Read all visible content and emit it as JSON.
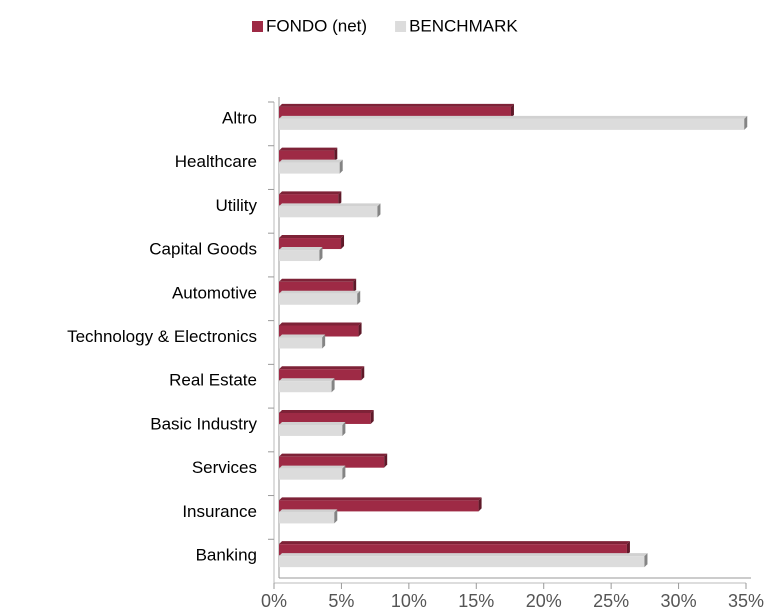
{
  "chart_data": {
    "type": "bar",
    "orientation": "horizontal",
    "categories": [
      "Altro",
      "Healthcare",
      "Utility",
      "Capital Goods",
      "Automotive",
      "Technology & Electronics",
      "Real Estate",
      "Basic Industry",
      "Services",
      "Insurance",
      "Banking"
    ],
    "series": [
      {
        "name": "FONDO (net)",
        "color": "#9e2a45",
        "values": [
          17.2,
          4.1,
          4.4,
          4.6,
          5.5,
          5.9,
          6.1,
          6.8,
          7.8,
          14.8,
          25.8
        ]
      },
      {
        "name": "BENCHMARK",
        "color": "#dcdcdc",
        "values": [
          34.5,
          4.5,
          7.3,
          3.0,
          5.8,
          3.2,
          3.9,
          4.7,
          4.7,
          4.1,
          27.1
        ]
      }
    ],
    "xlim": [
      0,
      35
    ],
    "xticks": [
      {
        "value": 0,
        "label": "0%"
      },
      {
        "value": 5,
        "label": "5%"
      },
      {
        "value": 10,
        "label": "10%"
      },
      {
        "value": 15,
        "label": "15%"
      },
      {
        "value": 20,
        "label": "20%"
      },
      {
        "value": 25,
        "label": "25%"
      },
      {
        "value": 30,
        "label": "30%"
      },
      {
        "value": 35,
        "label": "35%"
      }
    ],
    "legend": "top"
  }
}
